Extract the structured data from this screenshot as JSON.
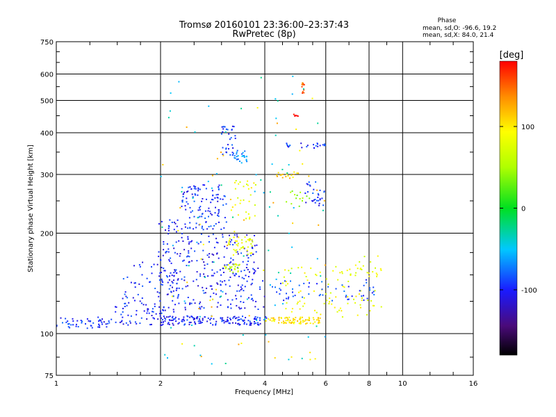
{
  "chart_data": {
    "type": "scatter",
    "title": "Tromsø 20160101 23:36:00–23:37:43",
    "subtitle": "RwPretec (8p)",
    "xlabel": "Frequency [MHz]",
    "ylabel": "Stationary phase Virtual Height [km]",
    "x_scale": "log",
    "y_scale": "log",
    "xlim": [
      1,
      16
    ],
    "ylim": [
      75,
      750
    ],
    "x_ticks": [
      1,
      2,
      4,
      6,
      8,
      10,
      16
    ],
    "x_tick_labels": [
      "1",
      "2",
      "4",
      "6",
      "8",
      "10",
      "16"
    ],
    "y_ticks": [
      75,
      100,
      200,
      300,
      400,
      500,
      600,
      750
    ],
    "y_tick_labels": [
      "75",
      "100",
      "200",
      "300",
      "400",
      "500",
      "600",
      "750"
    ],
    "x_minor_ticks": [
      1.25,
      1.5,
      1.75,
      2.5,
      3,
      3.5,
      4.5,
      5,
      5.5,
      7,
      9,
      12,
      14
    ],
    "y_minor_ticks": [
      85,
      125,
      150,
      175,
      250,
      350,
      450,
      550,
      650,
      700
    ],
    "grid": true,
    "phase_stats": {
      "heading": "Phase",
      "o_line": "mean, sd,O: -96.6, 19.2",
      "x_line": "mean, sd,X:  84.0, 21.4"
    },
    "colorbar": {
      "label": "[deg]",
      "range": [
        -180,
        180
      ],
      "ticks": [
        100,
        0,
        -100
      ],
      "tick_labels": [
        "100",
        "0",
        "-100"
      ]
    },
    "series_clusters": [
      {
        "f": [
          1.0,
          1.42
        ],
        "h": [
          103,
          112
        ],
        "phase": -95,
        "n": 50
      },
      {
        "f": [
          1.42,
          2.05
        ],
        "h": [
          106,
          124
        ],
        "phase": -100,
        "n": 60
      },
      {
        "f": [
          1.55,
          2.05
        ],
        "h": [
          122,
          168
        ],
        "phase": -95,
        "n": 40
      },
      {
        "f": [
          2.0,
          4.05
        ],
        "h": [
          106,
          113
        ],
        "phase": -100,
        "n": 150
      },
      {
        "f": [
          1.96,
          2.25
        ],
        "h": [
          112,
          225
        ],
        "phase": -100,
        "n": 75
      },
      {
        "f": [
          2.3,
          3.1
        ],
        "h": [
          205,
          280
        ],
        "phase": -95,
        "n": 120
      },
      {
        "f": [
          2.25,
          3.8
        ],
        "h": [
          160,
          200
        ],
        "phase": -100,
        "n": 100
      },
      {
        "f": [
          2.1,
          4.0
        ],
        "h": [
          140,
          158
        ],
        "phase": -100,
        "n": 70
      },
      {
        "f": [
          2.1,
          4.0
        ],
        "h": [
          118,
          140
        ],
        "phase": -100,
        "n": 90
      },
      {
        "f": [
          3.0,
          3.3
        ],
        "h": [
          340,
          420
        ],
        "phase": -95,
        "n": 32
      },
      {
        "f": [
          3.25,
          3.55
        ],
        "h": [
          325,
          355
        ],
        "phase": -70,
        "n": 26
      },
      {
        "f": [
          3.1,
          3.7
        ],
        "h": [
          170,
          195
        ],
        "phase": 85,
        "n": 42
      },
      {
        "f": [
          3.05,
          3.4
        ],
        "h": [
          152,
          162
        ],
        "phase": 65,
        "n": 22
      },
      {
        "f": [
          3.2,
          3.8
        ],
        "h": [
          220,
          290
        ],
        "phase": 85,
        "n": 30
      },
      {
        "f": [
          4.0,
          5.8
        ],
        "h": [
          107,
          112
        ],
        "phase": 105,
        "n": 85
      },
      {
        "f": [
          4.5,
          8.7
        ],
        "h": [
          112,
          160
        ],
        "phase": 85,
        "n": 85
      },
      {
        "f": [
          4.2,
          8.5
        ],
        "h": [
          125,
          145
        ],
        "phase": -90,
        "n": 55
      },
      {
        "f": [
          4.5,
          6.0
        ],
        "h": [
          360,
          372
        ],
        "phase": -95,
        "n": 22
      },
      {
        "f": [
          5.2,
          6.0
        ],
        "h": [
          240,
          285
        ],
        "phase": -95,
        "n": 30
      },
      {
        "f": [
          4.3,
          5.0
        ],
        "h": [
          292,
          305
        ],
        "phase": 110,
        "n": 16
      },
      {
        "f": [
          4.6,
          5.4
        ],
        "h": [
          240,
          268
        ],
        "phase": 40,
        "n": 14
      },
      {
        "f": [
          5.1,
          5.2
        ],
        "h": [
          520,
          565
        ],
        "phase": 150,
        "n": 10
      },
      {
        "f": [
          4.8,
          5.0
        ],
        "h": [
          448,
          458
        ],
        "phase": 175,
        "n": 6
      },
      {
        "f": [
          7.0,
          8.8
        ],
        "h": [
          148,
          172
        ],
        "phase": 80,
        "n": 22
      },
      {
        "f": [
          2.0,
          6.0
        ],
        "h": [
          80,
          600
        ],
        "phase": -40,
        "n": 80
      },
      {
        "f": [
          2.0,
          6.0
        ],
        "h": [
          80,
          600
        ],
        "phase": 110,
        "n": 50
      }
    ]
  }
}
